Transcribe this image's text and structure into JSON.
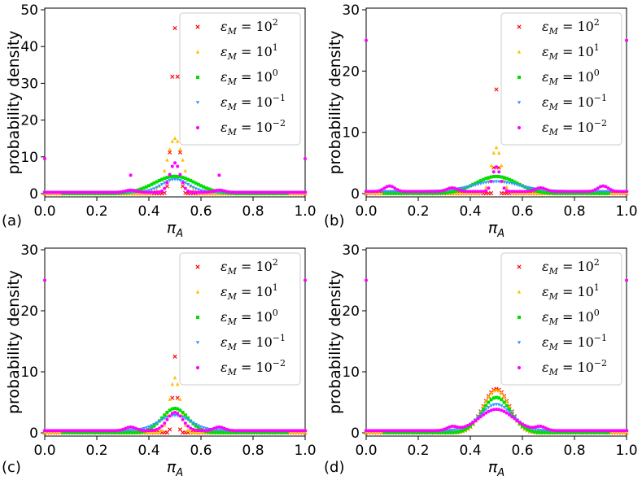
{
  "chart_data": [
    {
      "type": "scatter",
      "panel_label": "(a)",
      "xlabel": "π",
      "xlabel_sub": "A",
      "ylabel": "probability density",
      "xlim": [
        0.0,
        1.0
      ],
      "ylim": [
        0,
        50
      ],
      "yticks": [
        0,
        10,
        20,
        30,
        40,
        50
      ],
      "xticks": [
        0.0,
        0.2,
        0.4,
        0.6,
        0.8,
        1.0
      ],
      "legend_position": "top-right",
      "series": [
        {
          "name": "εM = 10^2",
          "legend_main": "ε",
          "legend_sub": "M",
          "legend_eq": " = 10",
          "legend_exp": "2",
          "color": "#ff0000",
          "marker": "x",
          "peak": 45,
          "width": 0.012
        },
        {
          "name": "εM = 10^1",
          "legend_main": "ε",
          "legend_sub": "M",
          "legend_eq": " = 10",
          "legend_exp": "1",
          "color": "#ffc000",
          "marker": "tri",
          "peak": 15,
          "width": 0.03
        },
        {
          "name": "εM = 10^0",
          "legend_main": "ε",
          "legend_sub": "M",
          "legend_eq": " = 10",
          "legend_exp": "0",
          "color": "#00e000",
          "marker": "square",
          "peak": 4.7,
          "width": 0.08
        },
        {
          "name": "εM = 10^-1",
          "legend_main": "ε",
          "legend_sub": "M",
          "legend_eq": " = 10",
          "legend_exp": "−1",
          "color": "#3399ff",
          "marker": "tri-down",
          "peak": 3.5,
          "width": 0.05
        },
        {
          "name": "εM = 10^-2",
          "legend_main": "ε",
          "legend_sub": "M",
          "legend_eq": " = 10",
          "legend_exp": "−2",
          "color": "#ff00ff",
          "marker": "dot",
          "peak": 8,
          "width": 0.02
        }
      ]
    },
    {
      "type": "scatter",
      "panel_label": "(b)",
      "xlabel": "π",
      "xlabel_sub": "A",
      "ylabel": "probability density",
      "xlim": [
        0.0,
        1.0
      ],
      "ylim": [
        0,
        30
      ],
      "yticks": [
        0,
        10,
        20,
        30
      ],
      "xticks": [
        0.0,
        0.2,
        0.4,
        0.6,
        0.8,
        1.0
      ],
      "legend_position": "top-right",
      "series": [
        {
          "name": "εM = 10^2",
          "legend_main": "ε",
          "legend_sub": "M",
          "legend_eq": " = 10",
          "legend_exp": "2",
          "color": "#ff0000",
          "marker": "x",
          "peak": 17,
          "width": 0.006
        },
        {
          "name": "εM = 10^1",
          "legend_main": "ε",
          "legend_sub": "M",
          "legend_eq": " = 10",
          "legend_exp": "1",
          "color": "#ffc000",
          "marker": "tri",
          "peak": 7.5,
          "width": 0.02
        },
        {
          "name": "εM = 10^0",
          "legend_main": "ε",
          "legend_sub": "M",
          "legend_eq": " = 10",
          "legend_exp": "0",
          "color": "#00e000",
          "marker": "square",
          "peak": 2.8,
          "width": 0.08
        },
        {
          "name": "εM = 10^-1",
          "legend_main": "ε",
          "legend_sub": "M",
          "legend_eq": " = 10",
          "legend_exp": "−1",
          "color": "#3399ff",
          "marker": "tri-down",
          "peak": 1.6,
          "width": 0.09
        },
        {
          "name": "εM = 10^-2",
          "legend_main": "ε",
          "legend_sub": "M",
          "legend_eq": " = 10",
          "legend_exp": "−2",
          "color": "#ff00ff",
          "marker": "dot",
          "peak": 4,
          "width": 0.015
        }
      ]
    },
    {
      "type": "scatter",
      "panel_label": "(c)",
      "xlabel": "π",
      "xlabel_sub": "A",
      "ylabel": "probability density",
      "xlim": [
        0.0,
        1.0
      ],
      "ylim": [
        0,
        30
      ],
      "yticks": [
        0,
        10,
        20,
        30
      ],
      "xticks": [
        0.0,
        0.2,
        0.4,
        0.6,
        0.8,
        1.0
      ],
      "legend_position": "top-right",
      "series": [
        {
          "name": "εM = 10^2",
          "legend_main": "ε",
          "legend_sub": "M",
          "legend_eq": " = 10",
          "legend_exp": "2",
          "color": "#ff0000",
          "marker": "x",
          "peak": 12.5,
          "width": 0.008
        },
        {
          "name": "εM = 10^1",
          "legend_main": "ε",
          "legend_sub": "M",
          "legend_eq": " = 10",
          "legend_exp": "1",
          "color": "#ffc000",
          "marker": "tri",
          "peak": 9,
          "width": 0.02
        },
        {
          "name": "εM = 10^0",
          "legend_main": "ε",
          "legend_sub": "M",
          "legend_eq": " = 10",
          "legend_exp": "0",
          "color": "#00e000",
          "marker": "square",
          "peak": 4,
          "width": 0.05
        },
        {
          "name": "εM = 10^-1",
          "legend_main": "ε",
          "legend_sub": "M",
          "legend_eq": " = 10",
          "legend_exp": "−1",
          "color": "#3399ff",
          "marker": "tri-down",
          "peak": 2.5,
          "width": 0.06
        },
        {
          "name": "εM = 10^-2",
          "legend_main": "ε",
          "legend_sub": "M",
          "legend_eq": " = 10",
          "legend_exp": "−2",
          "color": "#ff00ff",
          "marker": "dot",
          "peak": 3,
          "width": 0.03
        }
      ]
    },
    {
      "type": "scatter",
      "panel_label": "(d)",
      "xlabel": "π",
      "xlabel_sub": "A",
      "ylabel": "probability density",
      "xlim": [
        0.0,
        1.0
      ],
      "ylim": [
        0,
        30
      ],
      "yticks": [
        0,
        10,
        20,
        30
      ],
      "xticks": [
        0.0,
        0.2,
        0.4,
        0.6,
        0.8,
        1.0
      ],
      "legend_position": "top-right",
      "series": [
        {
          "name": "εM = 10^2",
          "legend_main": "ε",
          "legend_sub": "M",
          "legend_eq": " = 10",
          "legend_exp": "2",
          "color": "#ff0000",
          "marker": "x",
          "peak": 7.2,
          "width": 0.05
        },
        {
          "name": "εM = 10^1",
          "legend_main": "ε",
          "legend_sub": "M",
          "legend_eq": " = 10",
          "legend_exp": "1",
          "color": "#ffc000",
          "marker": "tri",
          "peak": 7,
          "width": 0.05
        },
        {
          "name": "εM = 10^0",
          "legend_main": "ε",
          "legend_sub": "M",
          "legend_eq": " = 10",
          "legend_exp": "0",
          "color": "#00e000",
          "marker": "square",
          "peak": 5.8,
          "width": 0.055
        },
        {
          "name": "εM = 10^-1",
          "legend_main": "ε",
          "legend_sub": "M",
          "legend_eq": " = 10",
          "legend_exp": "−1",
          "color": "#3399ff",
          "marker": "tri-down",
          "peak": 4.3,
          "width": 0.06
        },
        {
          "name": "εM = 10^-2",
          "legend_main": "ε",
          "legend_sub": "M",
          "legend_eq": " = 10",
          "legend_exp": "−2",
          "color": "#ff00ff",
          "marker": "dot",
          "peak": 3.5,
          "width": 0.065
        }
      ]
    }
  ]
}
